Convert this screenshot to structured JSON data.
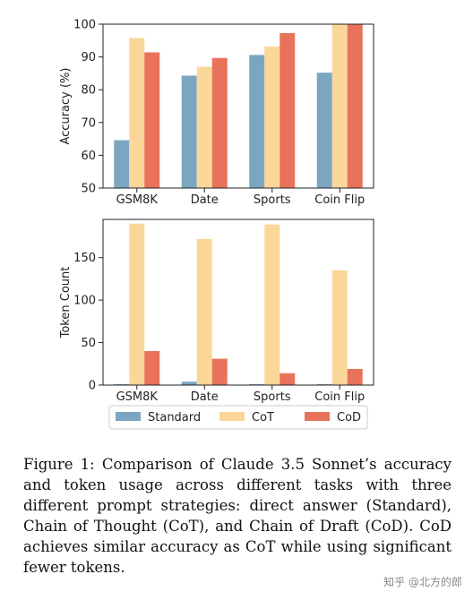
{
  "chart_data": [
    {
      "type": "bar",
      "categories": [
        "GSM8K",
        "Date",
        "Sports",
        "Coin Flip"
      ],
      "ylabel": "Accuracy (%)",
      "ylim": [
        50,
        100
      ],
      "yticks": [
        50,
        60,
        70,
        80,
        90,
        100
      ],
      "series": [
        {
          "name": "Standard",
          "values": [
            64.6,
            84.3,
            90.6,
            85.2
          ]
        },
        {
          "name": "CoT",
          "values": [
            95.8,
            87.0,
            93.2,
            100.0
          ]
        },
        {
          "name": "CoD",
          "values": [
            91.4,
            89.7,
            97.3,
            100.0
          ]
        }
      ],
      "grid": false
    },
    {
      "type": "bar",
      "categories": [
        "GSM8K",
        "Date",
        "Sports",
        "Coin Flip"
      ],
      "ylabel": "Token Count",
      "ylim": [
        0,
        195
      ],
      "yticks": [
        0,
        50,
        100,
        150
      ],
      "series": [
        {
          "name": "Standard",
          "values": [
            1,
            4,
            1,
            1
          ]
        },
        {
          "name": "CoT",
          "values": [
            190,
            172,
            189,
            135
          ]
        },
        {
          "name": "CoD",
          "values": [
            40,
            31,
            14,
            19
          ]
        }
      ],
      "grid": false,
      "legend": "bottom"
    }
  ],
  "legend": [
    {
      "name": "Standard",
      "color": "#7aa6c2"
    },
    {
      "name": "CoT",
      "color": "#fbd699"
    },
    {
      "name": "CoD",
      "color": "#e8735a"
    }
  ],
  "caption": "Figure 1: Comparison of Claude 3.5 Sonnet’s accuracy and token usage across different tasks with three different prompt strategies: direct answer (Standard), Chain of Thought (CoT), and Chain of Draft (CoD). CoD achieves similar accuracy as CoT while using significant fewer tokens.",
  "watermark": "知乎 @北方的郎"
}
